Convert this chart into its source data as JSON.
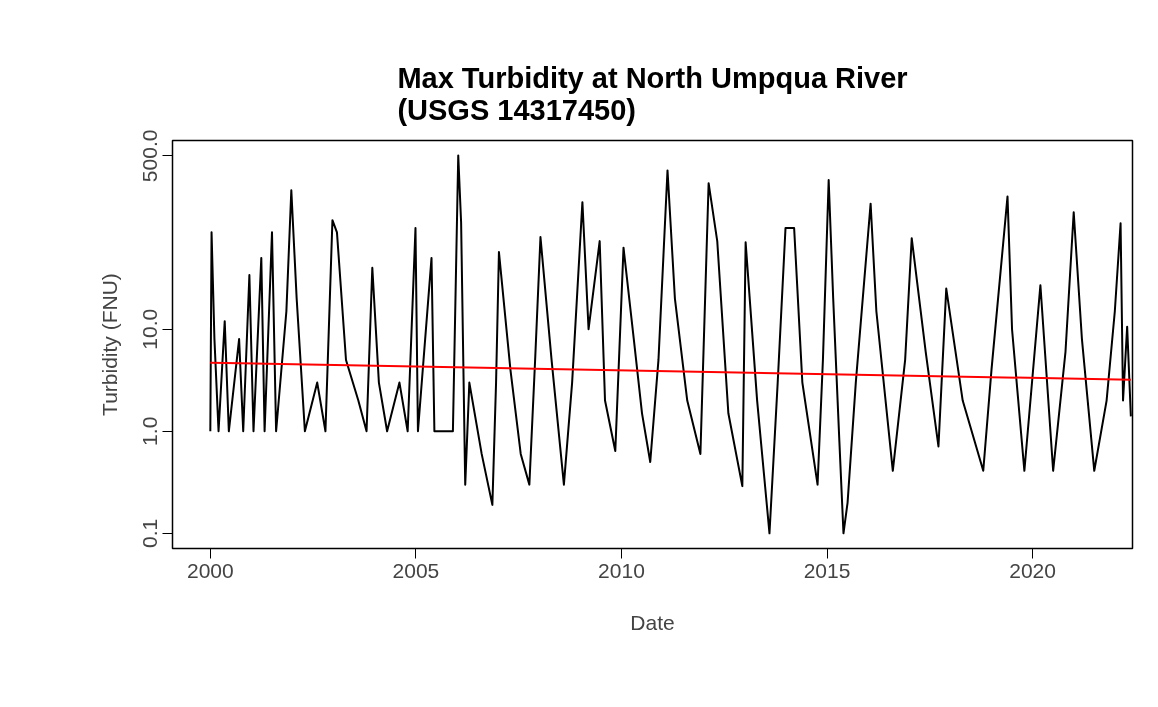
{
  "chart_data": {
    "type": "line",
    "title": "Max Turbidity at North Umpqua River\n(USGS 14317450)",
    "xlabel": "Date",
    "ylabel": "Turbidity (FNU)",
    "log": "y",
    "grid": false,
    "xlim": [
      1999.08,
      2022.43
    ],
    "xticks": [
      2000,
      2005,
      2010,
      2015,
      2020
    ],
    "ylim": [
      0.071,
      707
    ],
    "yticks": [
      {
        "value": 0.1,
        "label": "0.1"
      },
      {
        "value": 1,
        "label": "1.0"
      },
      {
        "value": 10,
        "label": "10.0"
      },
      {
        "value": 500,
        "label": "500.0"
      }
    ],
    "series": [
      {
        "color": "#000000",
        "x": [
          2000.0,
          2000.03,
          2000.1,
          2000.2,
          2000.35,
          2000.45,
          2000.7,
          2000.8,
          2000.95,
          2001.05,
          2001.24,
          2001.32,
          2001.5,
          2001.6,
          2001.85,
          2001.97,
          2002.1,
          2002.3,
          2002.6,
          2002.8,
          2002.97,
          2003.08,
          2003.3,
          2003.6,
          2003.8,
          2003.94,
          2004.1,
          2004.3,
          2004.6,
          2004.8,
          2004.99,
          2005.05,
          2005.38,
          2005.45,
          2005.9,
          2006.03,
          2006.1,
          2006.2,
          2006.3,
          2006.6,
          2006.86,
          2006.95,
          2007.02,
          2007.3,
          2007.55,
          2007.76,
          2007.9,
          2008.03,
          2008.3,
          2008.6,
          2008.8,
          2009.05,
          2009.2,
          2009.47,
          2009.6,
          2009.85,
          2010.05,
          2010.3,
          2010.5,
          2010.7,
          2010.9,
          2011.12,
          2011.3,
          2011.6,
          2011.92,
          2012.12,
          2012.33,
          2012.6,
          2012.94,
          2013.02,
          2013.3,
          2013.6,
          2013.8,
          2013.99,
          2014.2,
          2014.4,
          2014.77,
          2014.9,
          2015.04,
          2015.15,
          2015.3,
          2015.4,
          2015.5,
          2015.7,
          2016.06,
          2016.2,
          2016.6,
          2016.9,
          2017.06,
          2017.4,
          2017.71,
          2017.9,
          2018.3,
          2018.8,
          2019.0,
          2019.39,
          2019.5,
          2019.8,
          2020.19,
          2020.5,
          2020.8,
          2021.0,
          2021.2,
          2021.5,
          2021.8,
          2022.0,
          2022.14,
          2022.2,
          2022.3,
          2022.39
        ],
        "values": [
          1.0,
          89,
          8,
          1.0,
          12,
          1.0,
          8,
          1.0,
          34,
          1.0,
          50,
          1.0,
          89,
          1.0,
          15,
          230,
          20,
          1.0,
          3,
          1.0,
          117,
          89,
          5,
          2,
          1.0,
          40,
          3,
          1.0,
          3,
          1.0,
          98,
          1.0,
          50,
          1.0,
          1.0,
          505,
          111,
          0.3,
          3,
          0.6,
          0.19,
          3,
          57,
          4,
          0.6,
          0.3,
          5,
          80,
          5,
          0.3,
          3,
          176,
          10,
          73,
          2,
          0.64,
          63,
          8,
          1.5,
          0.5,
          5,
          360,
          20,
          2,
          0.6,
          270,
          73,
          1.5,
          0.29,
          71,
          2,
          0.1,
          3,
          98,
          98,
          3,
          0.3,
          5,
          290,
          20,
          0.8,
          0.1,
          0.2,
          3,
          170,
          15,
          0.41,
          5,
          78,
          6,
          0.71,
          25,
          2,
          0.41,
          4,
          200,
          10,
          0.41,
          27,
          0.41,
          6,
          140,
          8,
          0.41,
          2,
          15,
          109,
          2,
          10.6,
          1.4
        ]
      },
      {
        "color": "#ff0000",
        "x": [
          2000.0,
          2022.39
        ],
        "values": [
          4.7,
          3.2
        ]
      }
    ]
  }
}
